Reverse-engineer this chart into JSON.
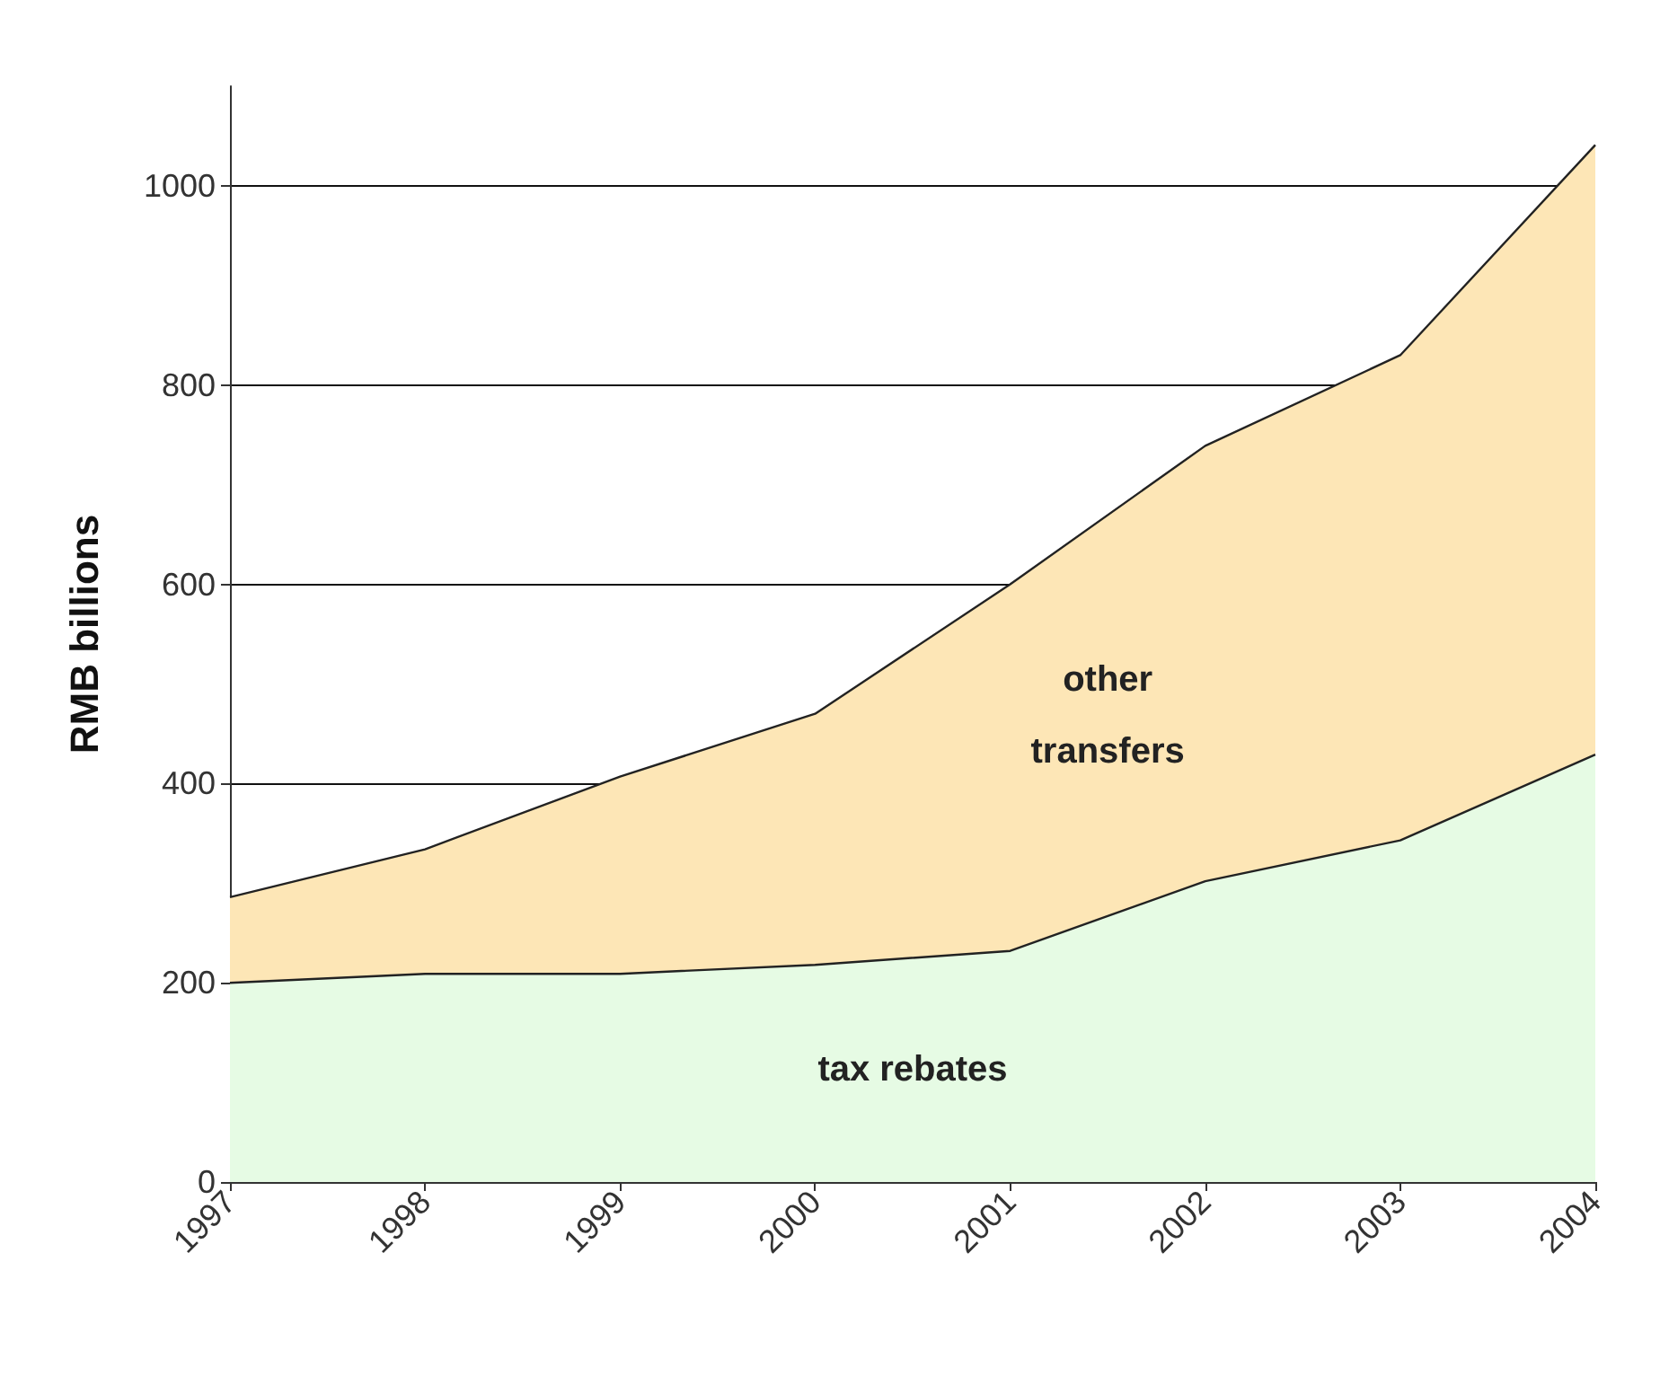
{
  "chart_data": {
    "type": "area",
    "stacked": true,
    "ylabel": "RMB billions",
    "categories": [
      "1997",
      "1998",
      "1999",
      "2000",
      "2001",
      "2002",
      "2003",
      "2004"
    ],
    "series": [
      {
        "name": "tax rebates",
        "color": "#e6fbe4",
        "values": [
          200,
          209,
          209,
          218,
          232,
          302,
          343,
          429
        ]
      },
      {
        "name": "other transfers",
        "color": "#fde6b6",
        "values": [
          86,
          125,
          198,
          252,
          368,
          437,
          487,
          612
        ]
      }
    ],
    "ylim": [
      0,
      1100
    ],
    "yticks": [
      0,
      200,
      400,
      600,
      800,
      1000
    ],
    "grid": "y",
    "legend": false
  }
}
